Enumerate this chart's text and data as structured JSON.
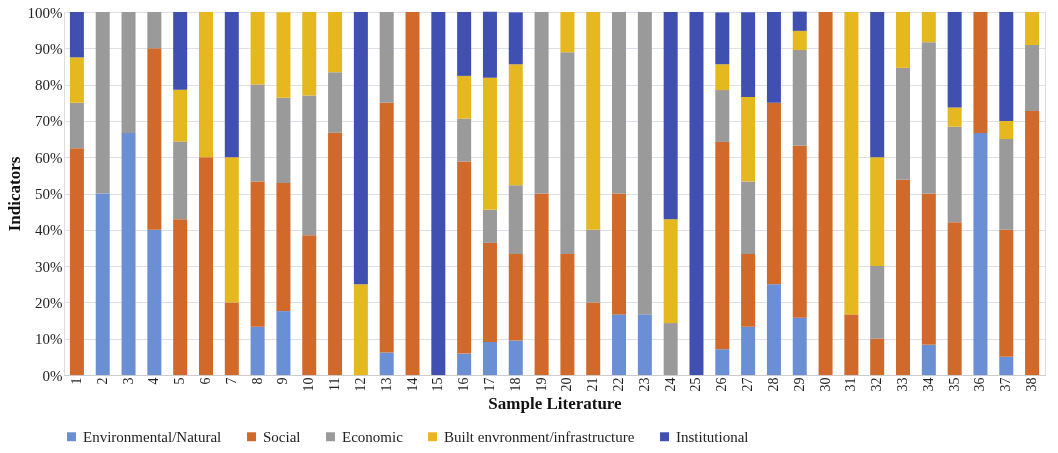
{
  "chart_data": {
    "type": "bar",
    "stacked": true,
    "xlabel": "Sample Literature",
    "ylabel": "Indicators",
    "categories": [
      "1",
      "2",
      "3",
      "4",
      "5",
      "6",
      "7",
      "8",
      "9",
      "10",
      "11",
      "12",
      "13",
      "14",
      "15",
      "16",
      "17",
      "18",
      "19",
      "20",
      "21",
      "22",
      "23",
      "24",
      "25",
      "26",
      "27",
      "28",
      "29",
      "30",
      "31",
      "32",
      "33",
      "34",
      "35",
      "36",
      "37",
      "38"
    ],
    "series": [
      {
        "name": "Environmental/Natural",
        "color": "#6a8fd4",
        "values": [
          null,
          50,
          66.7,
          40,
          null,
          null,
          null,
          13.3,
          17.6,
          null,
          null,
          null,
          6.2,
          null,
          null,
          5.9,
          9.1,
          9.5,
          null,
          null,
          null,
          16.7,
          16.7,
          null,
          null,
          7.1,
          13.3,
          25,
          15.8,
          null,
          null,
          null,
          null,
          8.3,
          null,
          66.7,
          5,
          null
        ]
      },
      {
        "name": "Social",
        "color": "#d0692a",
        "values": [
          62.5,
          null,
          null,
          50,
          42.9,
          60,
          20,
          40,
          35.3,
          38.5,
          66.7,
          null,
          68.8,
          100,
          null,
          52.9,
          27.3,
          23.8,
          50,
          33.3,
          20,
          33.3,
          null,
          null,
          null,
          57.1,
          20,
          50,
          47.4,
          100,
          16.7,
          10,
          53.8,
          41.7,
          42.1,
          33.3,
          35,
          72.7
        ]
      },
      {
        "name": "Economic",
        "color": "#9a9a9a",
        "values": [
          12.5,
          50,
          33.3,
          10,
          21.4,
          null,
          null,
          26.7,
          23.5,
          38.5,
          16.7,
          null,
          25,
          null,
          null,
          11.8,
          9.1,
          19,
          50,
          55.6,
          20,
          50,
          83.3,
          14.3,
          null,
          14.3,
          20,
          null,
          26.3,
          null,
          null,
          20,
          30.8,
          41.7,
          26.3,
          null,
          25,
          18.2
        ]
      },
      {
        "name": "Built envronment/infrastructure",
        "color": "#e6b820",
        "values": [
          12.5,
          null,
          null,
          null,
          14.3,
          40,
          40,
          20,
          23.5,
          23,
          16.6,
          25,
          null,
          null,
          null,
          11.8,
          36.4,
          33.3,
          null,
          11.1,
          60,
          null,
          null,
          28.6,
          null,
          7.1,
          23.3,
          null,
          5.3,
          null,
          83.3,
          30,
          15.4,
          8.3,
          5.3,
          null,
          5,
          9.1
        ]
      },
      {
        "name": "Institutional",
        "color": "#4050b0",
        "values": [
          12.5,
          null,
          null,
          null,
          21.4,
          null,
          40,
          null,
          null,
          null,
          null,
          75,
          null,
          null,
          100,
          17.6,
          18.2,
          14.3,
          null,
          null,
          null,
          null,
          null,
          57.1,
          100,
          14.3,
          23.3,
          25,
          5.3,
          null,
          null,
          40,
          null,
          null,
          26.3,
          null,
          30,
          null
        ]
      }
    ],
    "ylim": [
      0,
      100
    ],
    "yticks": [
      {
        "value": 0,
        "label": "0%"
      },
      {
        "value": 10,
        "label": "10%"
      },
      {
        "value": 20,
        "label": "20%"
      },
      {
        "value": 30,
        "label": "30%"
      },
      {
        "value": 40,
        "label": "40%"
      },
      {
        "value": 50,
        "label": "50%"
      },
      {
        "value": 60,
        "label": "60%"
      },
      {
        "value": 70,
        "label": "70%"
      },
      {
        "value": 80,
        "label": "80%"
      },
      {
        "value": 90,
        "label": "90%"
      },
      {
        "value": 100,
        "label": "100%"
      }
    ],
    "grid": "y",
    "legend": "bottom"
  }
}
